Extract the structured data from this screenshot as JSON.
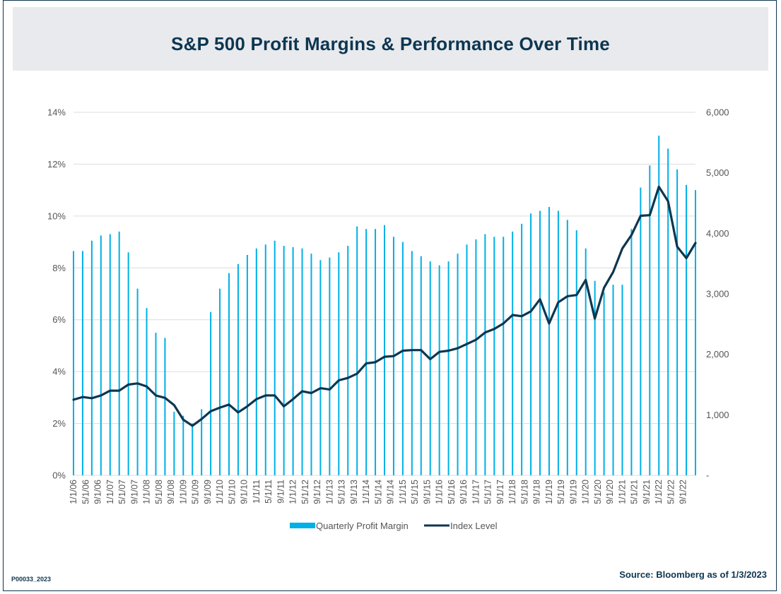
{
  "header": {
    "title": "S&P 500 Profit Margins & Performance Over Time"
  },
  "footer": {
    "code": "P00033_2023",
    "source": "Source: Bloomberg as of 1/3/2023"
  },
  "colors": {
    "bar": "#00b0e6",
    "line": "#0d3650",
    "grid": "#dcdcdc",
    "text": "#555555"
  },
  "chart_data": {
    "type": "bar",
    "title": "S&P 500 Profit Margins & Performance Over Time",
    "legend_position": "bottom",
    "grid": true,
    "x_tick_labels": [
      "1/1/06",
      "5/1/06",
      "9/1/06",
      "1/1/07",
      "5/1/07",
      "9/1/07",
      "1/1/08",
      "5/1/08",
      "9/1/08",
      "1/1/09",
      "5/1/09",
      "9/1/09",
      "1/1/10",
      "5/1/10",
      "9/1/10",
      "1/1/11",
      "5/1/11",
      "9/1/11",
      "1/1/12",
      "5/1/12",
      "9/1/12",
      "1/1/13",
      "5/1/13",
      "9/1/13",
      "1/1/14",
      "5/1/14",
      "9/1/14",
      "1/1/15",
      "5/1/15",
      "9/1/15",
      "1/1/16",
      "5/1/16",
      "9/1/16",
      "1/1/17",
      "5/1/17",
      "9/1/17",
      "1/1/18",
      "5/1/18",
      "9/1/18",
      "1/1/19",
      "5/1/19",
      "9/1/19",
      "1/1/20",
      "5/1/20",
      "9/1/20",
      "1/1/21",
      "5/1/21",
      "9/1/21",
      "1/1/22",
      "5/1/22",
      "9/1/22"
    ],
    "y_left": {
      "ylim": [
        0,
        14
      ],
      "ticks": [
        "0%",
        "2%",
        "4%",
        "6%",
        "8%",
        "10%",
        "12%",
        "14%"
      ]
    },
    "y_right": {
      "ylim": [
        0,
        6000
      ],
      "ticks": [
        "-",
        "1,000",
        "2,000",
        "3,000",
        "4,000",
        "5,000",
        "6,000"
      ]
    },
    "series": [
      {
        "name": "Quarterly Profit Margin",
        "type": "bar",
        "axis": "left",
        "values": [
          8.65,
          8.65,
          9.05,
          9.25,
          9.3,
          9.4,
          8.6,
          7.2,
          6.45,
          5.5,
          5.3,
          2.45,
          2.3,
          2.0,
          2.55,
          6.3,
          7.2,
          7.8,
          8.15,
          8.5,
          8.75,
          8.9,
          9.05,
          8.85,
          8.8,
          8.75,
          8.55,
          8.3,
          8.4,
          8.6,
          8.85,
          9.6,
          9.5,
          9.5,
          9.65,
          9.2,
          9.0,
          8.65,
          8.45,
          8.25,
          8.1,
          8.25,
          8.55,
          8.9,
          9.1,
          9.3,
          9.2,
          9.2,
          9.4,
          9.7,
          10.1,
          10.2,
          10.35,
          10.2,
          9.85,
          9.45,
          8.75,
          7.5,
          7.05,
          7.35,
          7.35,
          9.5,
          11.1,
          11.95,
          13.1,
          12.6,
          11.8,
          11.2,
          11.0
        ]
      },
      {
        "name": "Index Level",
        "type": "line",
        "axis": "right",
        "values": [
          1250,
          1295,
          1275,
          1320,
          1400,
          1400,
          1500,
          1520,
          1470,
          1320,
          1280,
          1160,
          920,
          820,
          930,
          1060,
          1120,
          1170,
          1040,
          1140,
          1260,
          1320,
          1320,
          1140,
          1260,
          1390,
          1360,
          1440,
          1420,
          1570,
          1610,
          1680,
          1850,
          1870,
          1960,
          1970,
          2060,
          2070,
          2070,
          1920,
          2040,
          2060,
          2100,
          2170,
          2240,
          2360,
          2420,
          2510,
          2650,
          2630,
          2710,
          2910,
          2510,
          2860,
          2960,
          2980,
          3230,
          2590,
          3100,
          3360,
          3750,
          3970,
          4290,
          4300,
          4770,
          4530,
          3780,
          3590,
          3840
        ]
      }
    ]
  }
}
